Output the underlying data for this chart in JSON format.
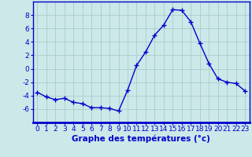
{
  "x": [
    0,
    1,
    2,
    3,
    4,
    5,
    6,
    7,
    8,
    9,
    10,
    11,
    12,
    13,
    14,
    15,
    16,
    17,
    18,
    19,
    20,
    21,
    22,
    23
  ],
  "y": [
    -3.5,
    -4.2,
    -4.6,
    -4.4,
    -5.0,
    -5.2,
    -5.8,
    -5.8,
    -5.9,
    -6.3,
    -3.2,
    0.5,
    2.5,
    5.0,
    6.5,
    8.8,
    8.7,
    7.0,
    3.8,
    0.8,
    -1.5,
    -2.0,
    -2.2,
    -3.3
  ],
  "line_color": "#0000cc",
  "marker": "+",
  "markersize": 4,
  "linewidth": 1.0,
  "bg_color": "#cce8e8",
  "grid_color": "#aacccc",
  "xlabel": "Graphe des températures (°c)",
  "xlabel_fontsize": 7.5,
  "tick_fontsize": 6.5,
  "ylim": [
    -8,
    10
  ],
  "yticks": [
    -6,
    -4,
    -2,
    0,
    2,
    4,
    6,
    8
  ],
  "xlim": [
    -0.5,
    23.5
  ],
  "xticks": [
    0,
    1,
    2,
    3,
    4,
    5,
    6,
    7,
    8,
    9,
    10,
    11,
    12,
    13,
    14,
    15,
    16,
    17,
    18,
    19,
    20,
    21,
    22,
    23
  ],
  "spine_color": "#0000cc",
  "spine_bottom_color": "#0000cc",
  "label_color": "#0000cc",
  "tick_color": "#0000cc"
}
